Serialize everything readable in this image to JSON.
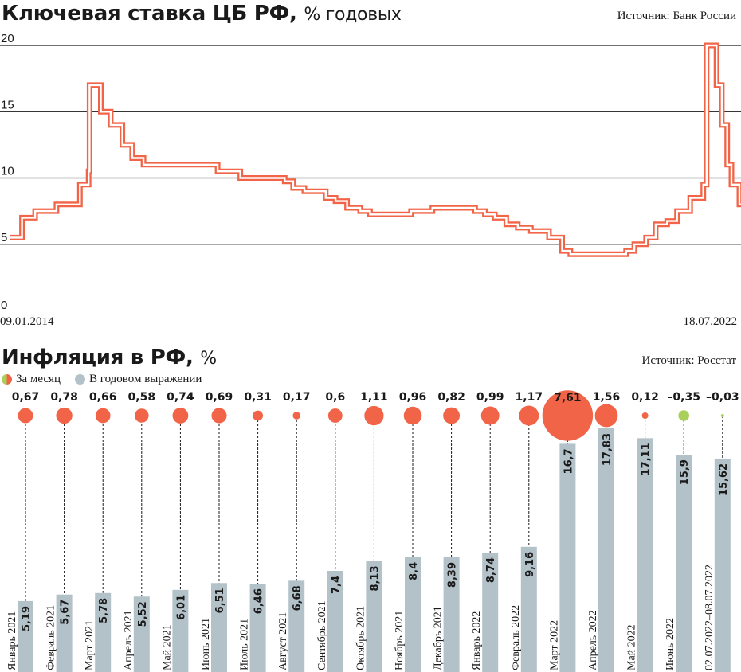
{
  "rate_section": {
    "title": "Ключевая ставка ЦБ РФ,",
    "title_unit": "% годовых",
    "source": "Источник: Банк России"
  },
  "inflation_section": {
    "title": "Инфляция в РФ,",
    "title_unit": "%",
    "source": "Источник: Росстат",
    "legend": {
      "monthly": "За месяц",
      "annual": "В годовом выражении"
    }
  },
  "colors": {
    "rate_line": "#f26447",
    "monthly_positive": "#f26447",
    "monthly_negative": "#a9d05a",
    "annual_bar": "#b3c1c9",
    "gridline": "#1a1a1a"
  },
  "chart_data": [
    {
      "type": "line",
      "ylim": [
        0,
        20
      ],
      "yticks": [
        0,
        5,
        10,
        15,
        20
      ],
      "grid": true,
      "x_start_label": "09.01.2014",
      "x_end_label": "18.07.2022",
      "series": [
        {
          "x": [
            "2014-01-09",
            "2014-03-03",
            "2014-04-28",
            "2014-07-28",
            "2014-11-05",
            "2014-12-12",
            "2014-12-16",
            "2015-02-02",
            "2015-03-16",
            "2015-05-05",
            "2015-06-16",
            "2015-08-03",
            "2016-06-14",
            "2016-09-19",
            "2017-03-27",
            "2017-05-02",
            "2017-06-19",
            "2017-09-18",
            "2017-10-30",
            "2017-12-18",
            "2018-02-12",
            "2018-03-26",
            "2018-09-17",
            "2018-12-17",
            "2019-06-17",
            "2019-07-29",
            "2019-09-09",
            "2019-10-28",
            "2019-12-16",
            "2020-02-10",
            "2020-04-27",
            "2020-06-22",
            "2020-07-27",
            "2021-03-22",
            "2021-04-26",
            "2021-06-15",
            "2021-07-26",
            "2021-09-13",
            "2021-10-25",
            "2021-12-20",
            "2022-02-14",
            "2022-02-28",
            "2022-04-11",
            "2022-05-04",
            "2022-05-27",
            "2022-06-14",
            "2022-07-18"
          ],
          "y": [
            5.5,
            7,
            7.5,
            8,
            9.5,
            10.5,
            17,
            15,
            14,
            12.5,
            11.5,
            11,
            10.5,
            10,
            9.75,
            9.25,
            9,
            8.5,
            8.25,
            7.75,
            7.5,
            7.25,
            7.5,
            7.75,
            7.5,
            7.25,
            7,
            6.5,
            6.25,
            6,
            5.5,
            4.5,
            4.25,
            4.5,
            5,
            5.5,
            6.5,
            6.75,
            7.5,
            8.5,
            9.5,
            20,
            17,
            14,
            11,
            9.5,
            8
          ]
        }
      ]
    },
    {
      "type": "bar",
      "categories": [
        "Январь 2021",
        "Февраль 2021",
        "Март 2021",
        "Апрель 2021",
        "Май 2021",
        "Июнь 2021",
        "Июль 2021",
        "Август 2021",
        "Сентябрь 2021",
        "Октябрь 2021",
        "Ноябрь 2021",
        "Декабрь 2021",
        "Январь 2022",
        "Февраль 2022",
        "Март 2022",
        "Апрель 2022",
        "Май 2022",
        "Июнь 2022",
        "02.07.2022–08.07.2022"
      ],
      "series": [
        {
          "name": "За месяц",
          "values": [
            0.67,
            0.78,
            0.66,
            0.58,
            0.74,
            0.69,
            0.31,
            0.17,
            0.6,
            1.11,
            0.96,
            0.82,
            0.99,
            1.17,
            7.61,
            1.56,
            0.12,
            -0.35,
            -0.03
          ],
          "labels": [
            "0,67",
            "0,78",
            "0,66",
            "0,58",
            "0,74",
            "0,69",
            "0,31",
            "0,17",
            "0,6",
            "1,11",
            "0,96",
            "0,82",
            "0,99",
            "1,17",
            "7,61",
            "1,56",
            "0,12",
            "–0,35",
            "–0,03"
          ]
        },
        {
          "name": "В годовом выражении",
          "values": [
            5.19,
            5.67,
            5.78,
            5.52,
            6.01,
            6.51,
            6.46,
            6.68,
            7.4,
            8.13,
            8.4,
            8.39,
            8.74,
            9.16,
            16.7,
            17.83,
            17.11,
            15.9,
            15.62
          ],
          "labels": [
            "5,19",
            "5,67",
            "5,78",
            "5,52",
            "6,01",
            "6,51",
            "6,46",
            "6,68",
            "7,4",
            "8,13",
            "8,4",
            "8,39",
            "8,74",
            "9,16",
            "16,7",
            "17,83",
            "17,11",
            "15,9",
            "15,62"
          ]
        }
      ]
    }
  ]
}
